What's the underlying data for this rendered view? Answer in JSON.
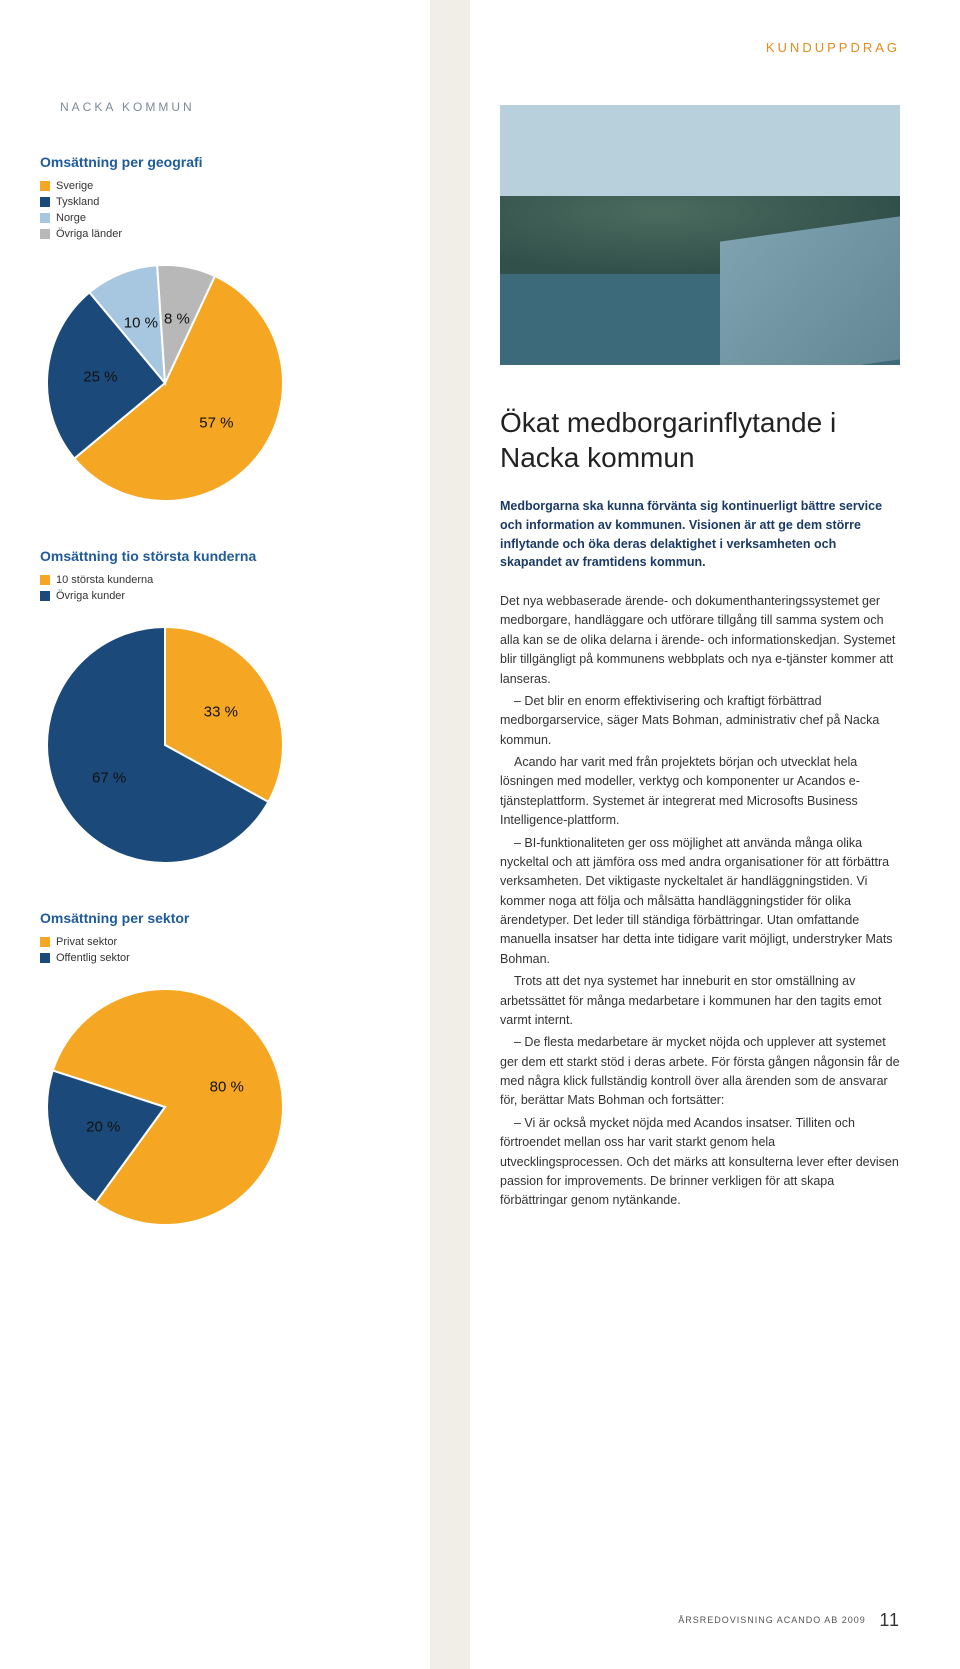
{
  "colors": {
    "orange": "#f5a623",
    "navy": "#1b4a7a",
    "lightblue": "#a7c7e0",
    "grey": "#b8b8b8",
    "header_orange": "#e28c20",
    "sub_grey": "#7d8a97",
    "lead_navy": "#1b3a66",
    "chart_title": "#1f5a9a"
  },
  "header": {
    "kunduppdrag": "KUNDUPPDRAG",
    "nacka": "NACKA KOMMUN"
  },
  "chart1": {
    "title": "Omsättning per geografi",
    "type": "pie",
    "legend": [
      {
        "label": "Sverige",
        "color": "#f5a623",
        "value": 57,
        "text": "57 %"
      },
      {
        "label": "Tyskland",
        "color": "#1b4a7a",
        "value": 25,
        "text": "25 %"
      },
      {
        "label": "Norge",
        "color": "#a7c7e0",
        "value": 10,
        "text": "10 %"
      },
      {
        "label": "Övriga länder",
        "color": "#b8b8b8",
        "value": 8,
        "text": "8 %"
      }
    ]
  },
  "chart2": {
    "title": "Omsättning tio största kunderna",
    "type": "pie",
    "legend": [
      {
        "label": "10 största kunderna",
        "color": "#f5a623",
        "value": 33,
        "text": "33 %"
      },
      {
        "label": "Övriga kunder",
        "color": "#1b4a7a",
        "value": 67,
        "text": "67 %"
      }
    ]
  },
  "chart3": {
    "title": "Omsättning per sektor",
    "type": "pie",
    "legend": [
      {
        "label": "Privat sektor",
        "color": "#f5a623",
        "value": 80,
        "text": "80 %"
      },
      {
        "label": "Offentlig sektor",
        "color": "#1b4a7a",
        "value": 20,
        "text": "20 %"
      }
    ]
  },
  "article": {
    "title": "Ökat medborgarinflytande i Nacka kommun",
    "lead": "Medborgarna ska kunna förvänta sig kontinuerligt bättre service och information av kommunen. Visionen är att ge dem större inflytande och öka deras delaktighet i verksamheten och skapandet av framtidens kommun.",
    "body": [
      "Det nya webbaserade ärende- och dokumenthanteringssystemet ger medborgare, handläggare och utförare tillgång till samma system och alla kan se de olika delarna i ärende- och informationskedjan. Systemet blir tillgängligt på kommunens webbplats och nya e-tjänster kommer att lanseras.",
      "– Det blir en enorm effektivisering och kraftigt förbättrad medborgarservice, säger Mats Bohman, administrativ chef på Nacka kommun.",
      "Acando har varit med från projektets början och utvecklat hela lösningen med modeller, verktyg och komponenter ur Acandos e-tjänsteplattform. Systemet är integrerat med Microsofts Business Intelligence-plattform.",
      "– BI-funktionaliteten ger oss möjlighet att använda många olika nyckeltal och att jämföra oss med andra organisationer för att förbättra verksamheten. Det viktigaste nyckeltalet är handläggningstiden. Vi kommer noga att följa och målsätta handläggningstider för olika ärendetyper. Det leder till ständiga förbättringar. Utan omfattande manuella insatser har detta inte tidigare varit möjligt, understryker Mats Bohman.",
      "Trots att det nya systemet har inneburit en stor omställning av arbetssättet för många medarbetare i kommunen har den tagits emot varmt internt.",
      "– De flesta medarbetare är mycket nöjda och upplever att systemet ger dem ett starkt stöd i deras arbete. För första gången någonsin får de med några klick fullständig kontroll över alla ärenden som de ansvarar för, berättar Mats Bohman och fortsätter:",
      "– Vi är också mycket nöjda med Acandos insatser. Tilliten och förtroendet mellan oss har varit starkt genom hela utvecklingsprocessen. Och det märks att konsulterna lever efter devisen passion for improvements. De brinner verkligen för att skapa förbättringar genom nytänkande."
    ]
  },
  "footer": {
    "text": "ÅRSREDOVISNING  ACANDO AB  2009",
    "page": "11"
  }
}
